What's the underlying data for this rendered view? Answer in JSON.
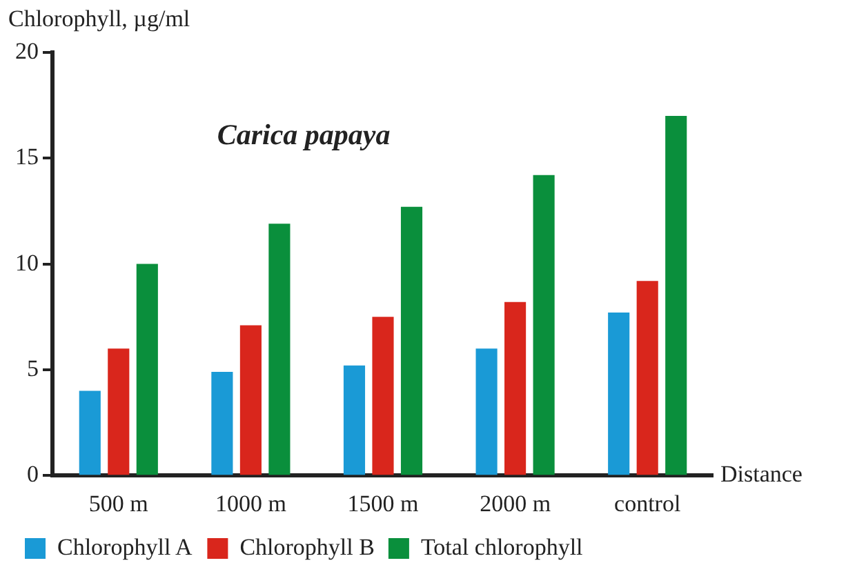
{
  "chart_data": {
    "type": "bar",
    "title": "Carica papaya",
    "xlabel": "Distance",
    "ylabel": "Chlorophyll, µg/ml",
    "categories": [
      "500 m",
      "1000 m",
      "1500 m",
      "2000 m",
      "control"
    ],
    "series": [
      {
        "name": "Chlorophyll A",
        "color": "#1a9ad6",
        "values": [
          4.0,
          4.9,
          5.2,
          6.0,
          7.7
        ]
      },
      {
        "name": "Chlorophyll B",
        "color": "#d9261c",
        "values": [
          6.0,
          7.1,
          7.5,
          8.2,
          9.2
        ]
      },
      {
        "name": "Total chlorophyll",
        "color": "#0a8f3c",
        "values": [
          10.0,
          11.9,
          12.7,
          14.2,
          17.0
        ]
      }
    ],
    "ylim": [
      0,
      20
    ],
    "yticks": [
      0,
      5,
      10,
      15,
      20
    ],
    "grid": false,
    "legend": "bottom"
  }
}
